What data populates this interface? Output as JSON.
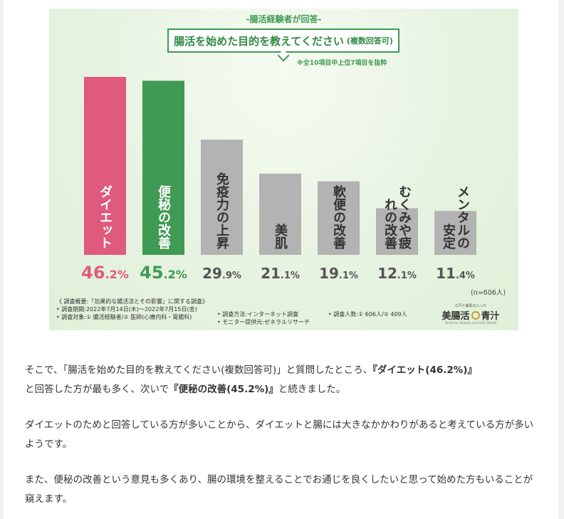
{
  "infographic": {
    "eyebrow": "-腸活経験者が回答-",
    "title": "腸活を始めた目的を教えてください",
    "title_suffix": "(複数回答可)",
    "note": "※全10項目中上位7項目を抜粋",
    "n_label": "(n=606人)",
    "survey": {
      "overview": "《 調査概要:「効果的な腸活法とその影響」に関する調査》",
      "period": "• 調査期間:2022年7月14日(木)〜2022年7月15日(金)",
      "target": "• 調査対象:① 腸活経験者/② 医師(心療内科・胃腸科)",
      "method": "• 調査方法:インターネット調査",
      "provider": "• モニター提供元:ゼネラルリサーチ",
      "count": "• 調査人数:① 606人/② 409人"
    },
    "logo": {
      "tagline": "江戸と酵素の入った",
      "name_left": "美腸活",
      "name_right": "青汁",
      "english": "Drink for Beauty and Gut Health"
    }
  },
  "chart_data": {
    "type": "bar",
    "categories": [
      "ダイエット",
      "便秘の改善",
      "免疫力の上昇",
      "美肌",
      "軟便の改善",
      "むくみや疲れの改善",
      "メンタルの安定"
    ],
    "values": [
      46.2,
      45.2,
      29.9,
      21.1,
      19.1,
      12.1,
      11.4
    ],
    "value_labels": [
      "46.2%",
      "45.2%",
      "29.9%",
      "21.1%",
      "19.1%",
      "12.1%",
      "11.4%"
    ],
    "unit": "%",
    "colors": [
      "#e05a7e",
      "#3f9a53",
      "#b3b3b3",
      "#b3b3b3",
      "#b3b3b3",
      "#b3b3b3",
      "#b3b3b3"
    ],
    "value_label_colors": [
      "#e05a7e",
      "#3f9a53",
      "#555555",
      "#555555",
      "#555555",
      "#555555",
      "#555555"
    ],
    "title": "腸活を始めた目的を教えてください",
    "xlabel": "",
    "ylabel": "",
    "ylim": [
      0,
      46.2
    ],
    "grid": false,
    "legend": "none"
  },
  "article": {
    "p1_a": "そこで、「腸活を始めた目的を教えてください(複数回答可)」と質問したところ、",
    "p1_b": "『ダイエット(46.2%)』",
    "p1_c": "と回答した方が最も多く、次いで",
    "p1_d": "『便秘の改善(45.2%)』",
    "p1_e": "と続きました。",
    "p2": "ダイエットのためと回答している方が多いことから、ダイエットと腸には大きなかかわりがあると考えている方が多いようです。",
    "p3": "また、便秘の改善という意見も多くあり、腸の環境を整えることでお通じを良くしたいと思って始めた方もいることが窺えます。"
  }
}
